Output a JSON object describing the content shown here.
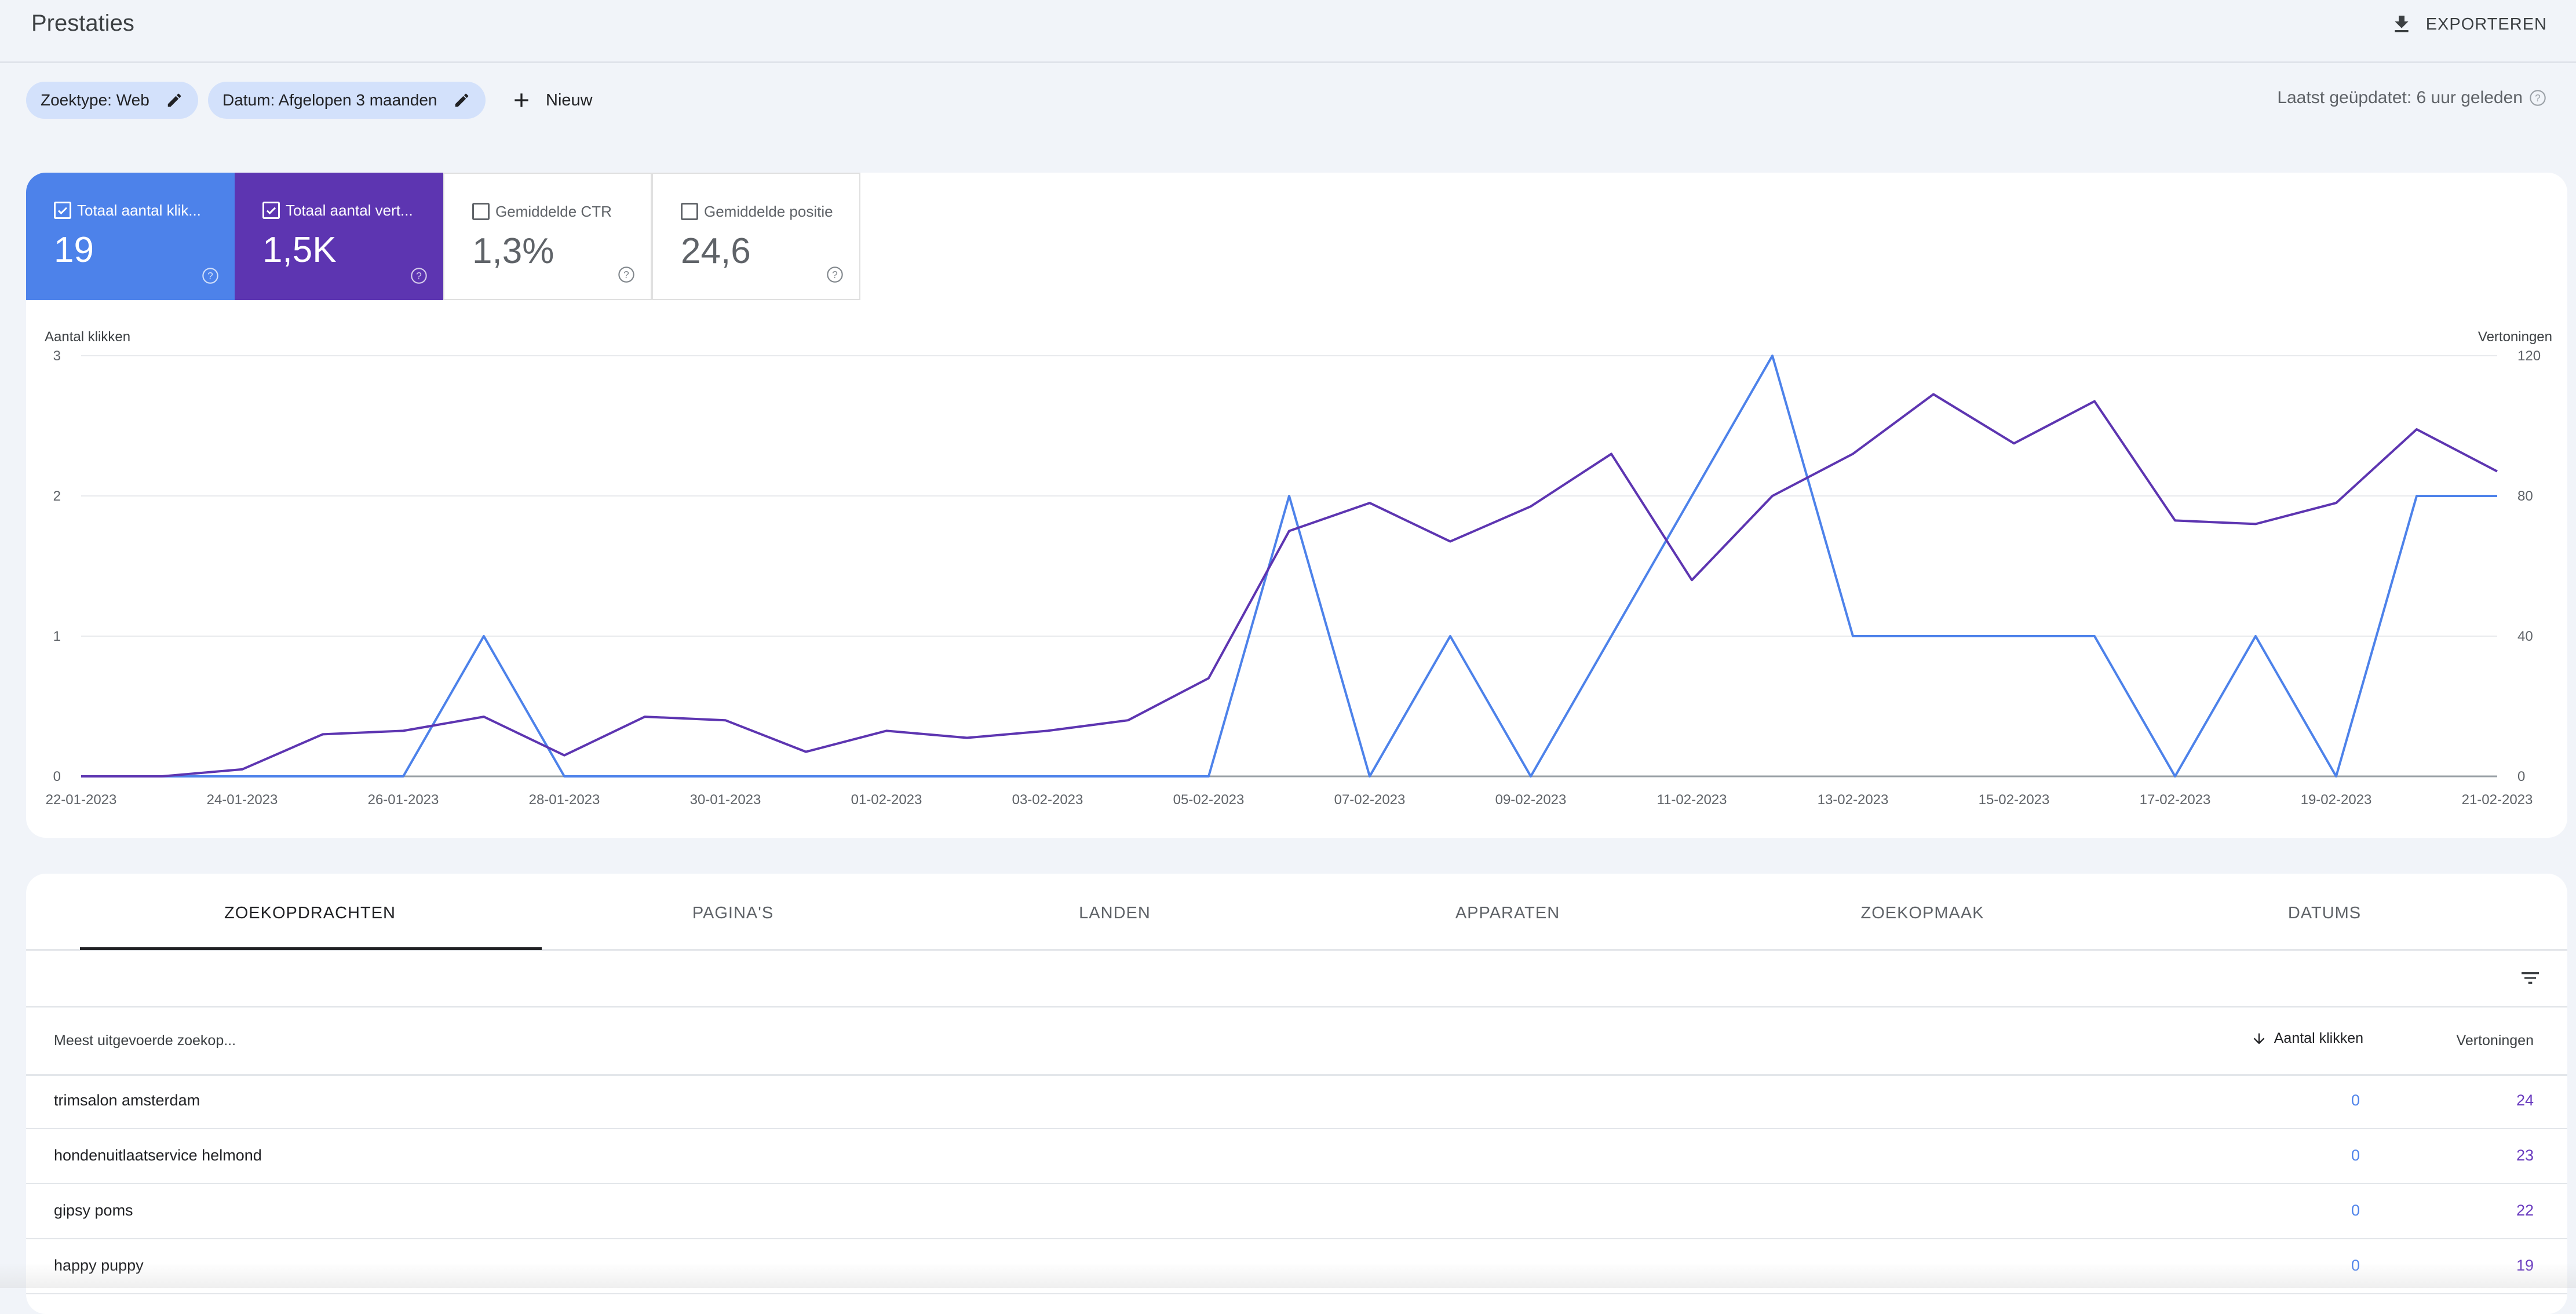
{
  "header": {
    "title": "Prestaties",
    "export_label": "EXPORTEREN"
  },
  "filters": {
    "chips": [
      {
        "label": "Zoektype: Web"
      },
      {
        "label": "Datum: Afgelopen 3 maanden"
      }
    ],
    "new_label": "Nieuw",
    "updated_text": "Laatst geüpdatet: 6 uur geleden"
  },
  "metrics": [
    {
      "label": "Totaal aantal klik...",
      "value": "19",
      "checked": true,
      "color": "#4d82ea"
    },
    {
      "label": "Totaal aantal vert...",
      "value": "1,5K",
      "checked": true,
      "color": "#5d35b1"
    },
    {
      "label": "Gemiddelde CTR",
      "value": "1,3%",
      "checked": false
    },
    {
      "label": "Gemiddelde positie",
      "value": "24,6",
      "checked": false
    }
  ],
  "chart_data": {
    "type": "line",
    "left_axis_label": "Aantal klikken",
    "right_axis_label": "Vertoningen",
    "y_left": {
      "range": [
        0,
        3
      ],
      "ticks": [
        "0",
        "1",
        "2",
        "3"
      ]
    },
    "y_right": {
      "range": [
        0,
        120
      ],
      "ticks": [
        "0",
        "40",
        "80",
        "120"
      ]
    },
    "grid": true,
    "x": [
      "22-01-2023",
      "23-01-2023",
      "24-01-2023",
      "25-01-2023",
      "26-01-2023",
      "27-01-2023",
      "28-01-2023",
      "29-01-2023",
      "30-01-2023",
      "31-01-2023",
      "01-02-2023",
      "02-02-2023",
      "03-02-2023",
      "04-02-2023",
      "05-02-2023",
      "06-02-2023",
      "07-02-2023",
      "08-02-2023",
      "09-02-2023",
      "10-02-2023",
      "11-02-2023",
      "12-02-2023",
      "13-02-2023",
      "14-02-2023",
      "15-02-2023",
      "16-02-2023",
      "17-02-2023",
      "18-02-2023",
      "19-02-2023",
      "20-02-2023",
      "21-02-2023"
    ],
    "x_tick_labels": [
      "22-01-2023",
      "24-01-2023",
      "26-01-2023",
      "28-01-2023",
      "30-01-2023",
      "01-02-2023",
      "03-02-2023",
      "05-02-2023",
      "07-02-2023",
      "09-02-2023",
      "11-02-2023",
      "13-02-2023",
      "15-02-2023",
      "17-02-2023",
      "19-02-2023",
      "21-02-2023"
    ],
    "series": [
      {
        "name": "Totaal aantal klikken",
        "axis": "left",
        "color": "#4d82ea",
        "values": [
          0,
          0,
          0,
          0,
          0,
          1,
          0,
          0,
          0,
          0,
          0,
          0,
          0,
          0,
          0,
          2,
          0,
          1,
          0,
          1,
          2,
          3,
          1,
          1,
          1,
          1,
          0,
          1,
          0,
          2,
          2
        ]
      },
      {
        "name": "Totaal aantal vertoningen",
        "axis": "right",
        "color": "#5d35b1",
        "values": [
          0,
          0,
          2,
          12,
          13,
          17,
          6,
          17,
          16,
          7,
          13,
          11,
          13,
          16,
          28,
          70,
          78,
          67,
          77,
          92,
          56,
          80,
          92,
          109,
          95,
          107,
          73,
          72,
          78,
          99,
          87
        ]
      }
    ]
  },
  "table": {
    "tabs": [
      "ZOEKOPDRACHTEN",
      "PAGINA'S",
      "LANDEN",
      "APPARATEN",
      "ZOEKOPMAAK",
      "DATUMS"
    ],
    "active_tab": 0,
    "columns": {
      "query": "Meest uitgevoerde zoekop...",
      "clicks": "Aantal klikken",
      "impressions": "Vertoningen"
    },
    "rows": [
      {
        "query": "trimsalon amsterdam",
        "clicks": "0",
        "impressions": "24"
      },
      {
        "query": "hondenuitlaatservice helmond",
        "clicks": "0",
        "impressions": "23"
      },
      {
        "query": "gipsy poms",
        "clicks": "0",
        "impressions": "22"
      },
      {
        "query": "happy puppy",
        "clicks": "0",
        "impressions": "19"
      }
    ]
  }
}
